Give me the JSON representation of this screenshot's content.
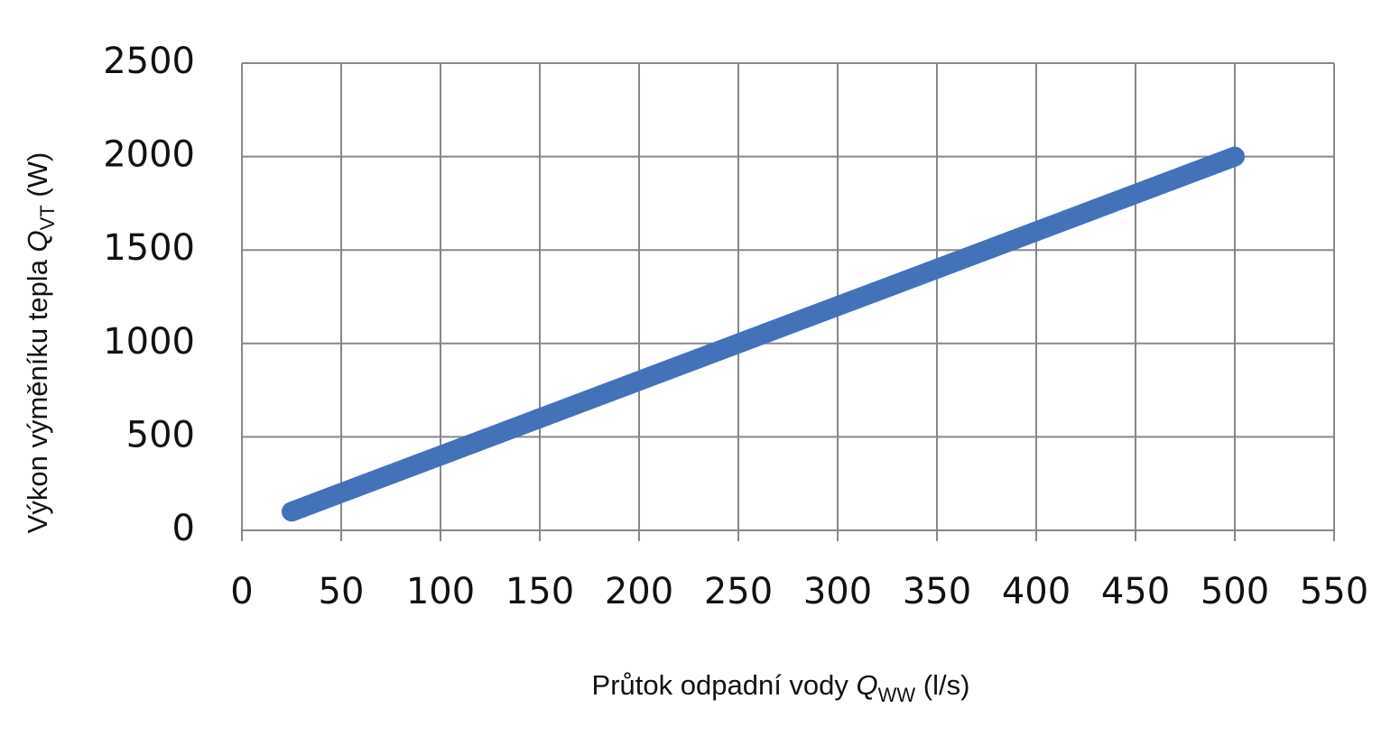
{
  "chart_data": {
    "type": "line",
    "x_label": {
      "text": "Průtok odpadní vody ",
      "symbol": "Q",
      "subscript": "WW",
      "unit": " (l/s)"
    },
    "y_label": {
      "text": "Výkon výměníku tepla ",
      "symbol": "Q",
      "subscript": "VT",
      "unit": " (W)"
    },
    "x": [
      25,
      500
    ],
    "series": [
      {
        "color": "#4472b9",
        "values": [
          100,
          2000
        ]
      }
    ],
    "xlim": [
      0,
      550
    ],
    "xticks": [
      0,
      50,
      100,
      150,
      200,
      250,
      300,
      350,
      400,
      450,
      500,
      550
    ],
    "ylim": [
      0,
      2500
    ],
    "yticks": [
      0,
      500,
      1000,
      1500,
      2000,
      2500
    ],
    "grid": true
  }
}
